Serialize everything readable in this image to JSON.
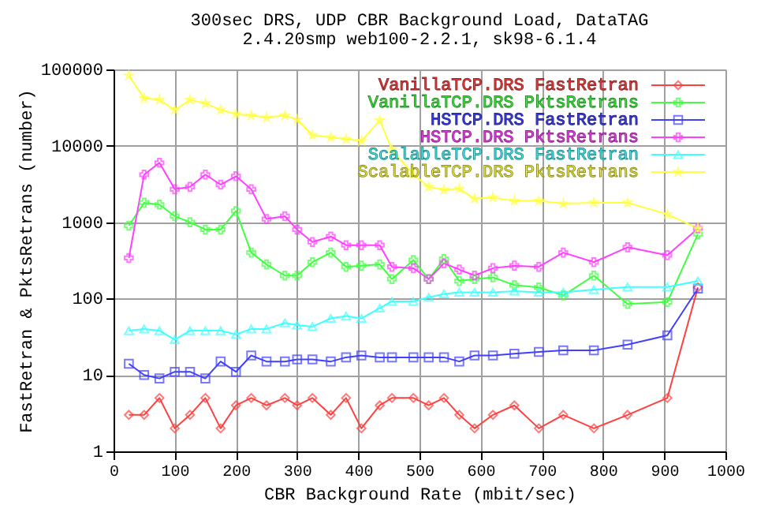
{
  "chart_data": {
    "type": "line",
    "title": "300sec DRS, UDP CBR Background Load, DataTAG",
    "subtitle": "2.4.20smp web100-2.2.1, sk98-6.1.4",
    "xlabel": "CBR Background Rate (mbit/sec)",
    "ylabel": "FastRetran & PktsRetrans (number)",
    "x": [
      25,
      50,
      75,
      100,
      125,
      150,
      175,
      200,
      225,
      250,
      280,
      300,
      325,
      355,
      380,
      405,
      435,
      455,
      490,
      515,
      540,
      565,
      590,
      620,
      655,
      695,
      735,
      785,
      840,
      905,
      955
    ],
    "series": [
      {
        "name": "VanillaTCP.DRS FastRetran",
        "color": "#ff4040",
        "marker": "diamond",
        "values": [
          3,
          3,
          5,
          2,
          3,
          5,
          2,
          4,
          5,
          4,
          5,
          4,
          5,
          3,
          5,
          2,
          4,
          5,
          5,
          4,
          5,
          3,
          2,
          3,
          4,
          2,
          3,
          2,
          3,
          5,
          140
        ]
      },
      {
        "name": "VanillaTCP.DRS PktsRetrans",
        "color": "#40ff40",
        "marker": "cross",
        "values": [
          900,
          1800,
          1700,
          1200,
          1000,
          800,
          800,
          1400,
          400,
          280,
          200,
          200,
          300,
          400,
          260,
          270,
          280,
          180,
          320,
          180,
          330,
          170,
          180,
          190,
          150,
          140,
          110,
          200,
          85,
          90,
          700
        ]
      },
      {
        "name": "HSTCP.DRS FastRetran",
        "color": "#4040ff",
        "marker": "square",
        "values": [
          14,
          10,
          9,
          11,
          11,
          9,
          15,
          11,
          18,
          15,
          15,
          16,
          16,
          15,
          17,
          18,
          17,
          17,
          17,
          17,
          17,
          15,
          18,
          18,
          19,
          20,
          21,
          21,
          25,
          33,
          135
        ]
      },
      {
        "name": "HSTCP.DRS PktsRetrans",
        "color": "#ff40ff",
        "marker": "cross",
        "values": [
          340,
          4200,
          6000,
          2700,
          2900,
          4200,
          3100,
          4000,
          2700,
          1100,
          1200,
          800,
          550,
          650,
          500,
          500,
          500,
          260,
          250,
          180,
          290,
          240,
          200,
          250,
          270,
          260,
          400,
          300,
          470,
          370,
          830
        ]
      },
      {
        "name": "ScalableTCP.DRS FastRetran",
        "color": "#40ffff",
        "marker": "triangle",
        "values": [
          38,
          40,
          38,
          29,
          38,
          38,
          38,
          34,
          40,
          40,
          48,
          45,
          43,
          55,
          59,
          55,
          75,
          92,
          92,
          104,
          115,
          121,
          121,
          121,
          125,
          121,
          121,
          131,
          142,
          142,
          170
        ]
      },
      {
        "name": "ScalableTCP.DRS PktsRetrans",
        "color": "#ffff40",
        "marker": "star",
        "values": [
          83000,
          42000,
          40000,
          29500,
          40000,
          36000,
          29500,
          26000,
          25000,
          23400,
          25000,
          22000,
          13800,
          12900,
          12200,
          11600,
          21500,
          8900,
          4200,
          2900,
          2650,
          2750,
          2030,
          2100,
          1900,
          1900,
          1750,
          1800,
          1800,
          1270,
          830
        ]
      }
    ],
    "xlim": [
      0,
      1000
    ],
    "xticks": [
      0,
      100,
      200,
      300,
      400,
      500,
      600,
      700,
      800,
      900,
      1000
    ],
    "ylim": [
      1,
      100000
    ],
    "yticks": [
      1,
      10,
      100,
      1000,
      10000,
      100000
    ],
    "log": true,
    "grid": true,
    "legend": "top right"
  }
}
